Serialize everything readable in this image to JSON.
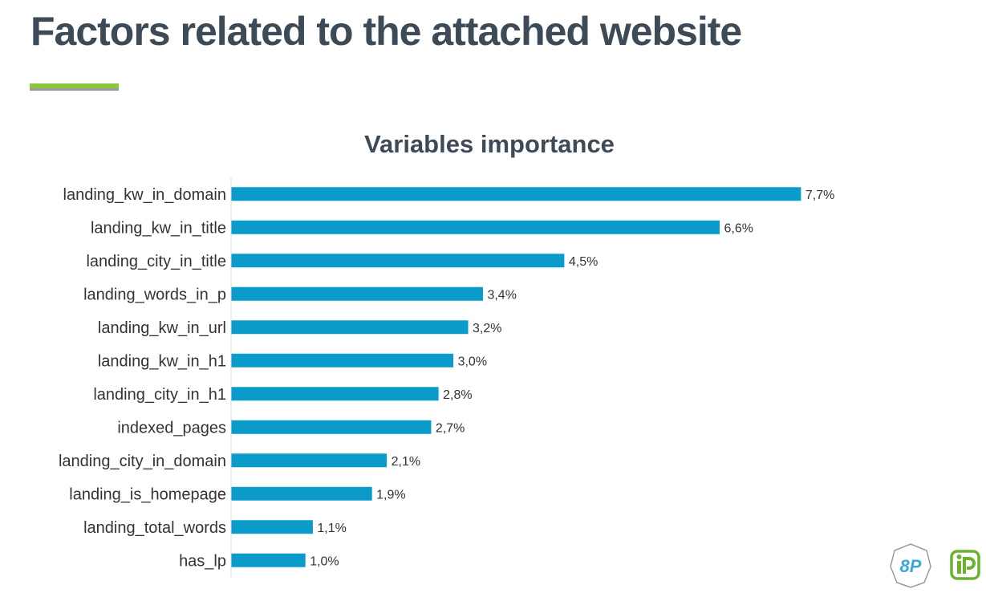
{
  "slide": {
    "title": "Factors related to the attached website"
  },
  "colors": {
    "title": "#3d4a57",
    "accent": "#8cc63f",
    "accent_shadow": "#9a9a9a",
    "bar": "#0a9bcb",
    "axis": "#d9d9d9",
    "logo_8p": "#3aa8d8",
    "logo_ip": "#6ab42d"
  },
  "logos": {
    "left_text": "8P"
  },
  "chart_data": {
    "type": "bar",
    "orientation": "horizontal",
    "title": "Variables importance",
    "xlabel": "",
    "ylabel": "",
    "xlim": [
      0,
      8.2
    ],
    "grid": false,
    "legend": "none",
    "categories": [
      "landing_kw_in_domain",
      "landing_kw_in_title",
      "landing_city_in_title",
      "landing_words_in_p",
      "landing_kw_in_url",
      "landing_kw_in_h1",
      "landing_city_in_h1",
      "indexed_pages",
      "landing_city_in_domain",
      "landing_is_homepage",
      "landing_total_words",
      "has_lp"
    ],
    "values": [
      7.7,
      6.6,
      4.5,
      3.4,
      3.2,
      3.0,
      2.8,
      2.7,
      2.1,
      1.9,
      1.1,
      1.0
    ],
    "data_labels": [
      "7,7%",
      "6,6%",
      "4,5%",
      "3,4%",
      "3,2%",
      "3,0%",
      "2,8%",
      "2,7%",
      "2,1%",
      "1,9%",
      "1,1%",
      "1,0%"
    ]
  }
}
